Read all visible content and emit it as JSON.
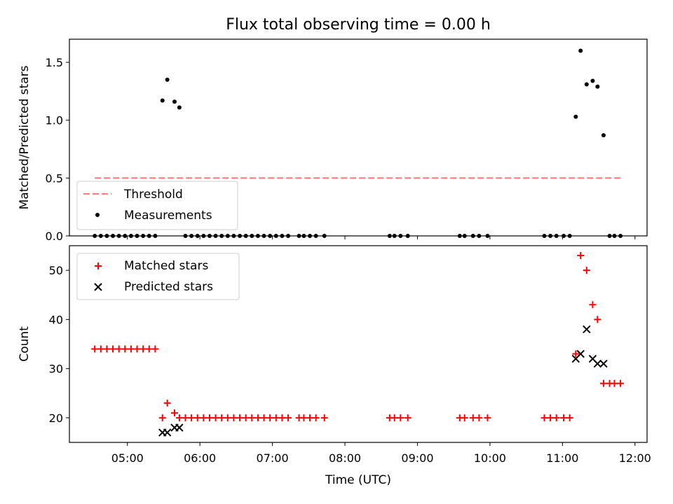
{
  "chart_data": {
    "title": "Flux total observing time = 0.00 h",
    "x_ticks": [
      "05:00",
      "06:00",
      "07:00",
      "08:00",
      "09:00",
      "10:00",
      "11:00",
      "12:00"
    ],
    "x_label": "Time (UTC)",
    "xlim": [
      "04:12",
      "12:10"
    ],
    "panels": [
      {
        "type": "scatter",
        "ylabel": "Matched/Predicted stars",
        "ylim": [
          0,
          1.7
        ],
        "y_ticks": [
          "0.0",
          "0.5",
          "1.0",
          "1.5"
        ],
        "legend_position": "lower-left",
        "threshold": {
          "name": "Threshold",
          "value": 0.5,
          "x_range": [
            "04:33",
            "11:48"
          ],
          "color": "#ff7f7f"
        },
        "measurements": {
          "name": "Measurements",
          "color": "#000000",
          "points": [
            [
              "04:33",
              0
            ],
            [
              "04:38",
              0
            ],
            [
              "04:43",
              0
            ],
            [
              "04:48",
              0
            ],
            [
              "04:53",
              0
            ],
            [
              "04:58",
              0
            ],
            [
              "05:03",
              0
            ],
            [
              "05:08",
              0
            ],
            [
              "05:13",
              0
            ],
            [
              "05:18",
              0
            ],
            [
              "05:23",
              0
            ],
            [
              "05:29",
              1.17
            ],
            [
              "05:33",
              1.35
            ],
            [
              "05:39",
              1.16
            ],
            [
              "05:43",
              1.11
            ],
            [
              "05:48",
              0
            ],
            [
              "05:53",
              0
            ],
            [
              "05:58",
              0
            ],
            [
              "06:03",
              0
            ],
            [
              "06:08",
              0
            ],
            [
              "06:13",
              0
            ],
            [
              "06:18",
              0
            ],
            [
              "06:23",
              0
            ],
            [
              "06:28",
              0
            ],
            [
              "06:33",
              0
            ],
            [
              "06:38",
              0
            ],
            [
              "06:43",
              0
            ],
            [
              "06:48",
              0
            ],
            [
              "06:53",
              0
            ],
            [
              "06:58",
              0
            ],
            [
              "07:03",
              0
            ],
            [
              "07:08",
              0
            ],
            [
              "07:13",
              0
            ],
            [
              "07:22",
              0
            ],
            [
              "07:26",
              0
            ],
            [
              "07:31",
              0
            ],
            [
              "07:36",
              0
            ],
            [
              "07:43",
              0
            ],
            [
              "08:37",
              0
            ],
            [
              "08:41",
              0
            ],
            [
              "08:46",
              0
            ],
            [
              "08:52",
              0
            ],
            [
              "09:35",
              0
            ],
            [
              "09:39",
              0
            ],
            [
              "09:46",
              0
            ],
            [
              "09:51",
              0
            ],
            [
              "09:58",
              0
            ],
            [
              "10:45",
              0
            ],
            [
              "10:50",
              0
            ],
            [
              "10:55",
              0
            ],
            [
              "11:01",
              0
            ],
            [
              "11:06",
              0
            ],
            [
              "11:11",
              1.03
            ],
            [
              "11:15",
              1.6
            ],
            [
              "11:20",
              1.31
            ],
            [
              "11:25",
              1.34
            ],
            [
              "11:29",
              1.29
            ],
            [
              "11:34",
              0.87
            ],
            [
              "11:39",
              0
            ],
            [
              "11:43",
              0
            ],
            [
              "11:48",
              0
            ]
          ]
        }
      },
      {
        "type": "scatter",
        "ylabel": "Count",
        "ylim": [
          15,
          55
        ],
        "y_ticks": [
          "20",
          "30",
          "40",
          "50"
        ],
        "legend_position": "upper-left",
        "series": [
          {
            "name": "Matched stars",
            "marker": "plus",
            "color": "#ff0000",
            "points": [
              [
                "04:33",
                34
              ],
              [
                "04:38",
                34
              ],
              [
                "04:43",
                34
              ],
              [
                "04:48",
                34
              ],
              [
                "04:53",
                34
              ],
              [
                "04:58",
                34
              ],
              [
                "05:03",
                34
              ],
              [
                "05:08",
                34
              ],
              [
                "05:13",
                34
              ],
              [
                "05:18",
                34
              ],
              [
                "05:23",
                34
              ],
              [
                "05:29",
                20
              ],
              [
                "05:33",
                23
              ],
              [
                "05:39",
                21
              ],
              [
                "05:43",
                20
              ],
              [
                "05:48",
                20
              ],
              [
                "05:53",
                20
              ],
              [
                "05:58",
                20
              ],
              [
                "06:03",
                20
              ],
              [
                "06:08",
                20
              ],
              [
                "06:13",
                20
              ],
              [
                "06:18",
                20
              ],
              [
                "06:23",
                20
              ],
              [
                "06:28",
                20
              ],
              [
                "06:33",
                20
              ],
              [
                "06:38",
                20
              ],
              [
                "06:43",
                20
              ],
              [
                "06:48",
                20
              ],
              [
                "06:53",
                20
              ],
              [
                "06:58",
                20
              ],
              [
                "07:03",
                20
              ],
              [
                "07:08",
                20
              ],
              [
                "07:13",
                20
              ],
              [
                "07:22",
                20
              ],
              [
                "07:26",
                20
              ],
              [
                "07:31",
                20
              ],
              [
                "07:36",
                20
              ],
              [
                "07:43",
                20
              ],
              [
                "08:37",
                20
              ],
              [
                "08:41",
                20
              ],
              [
                "08:46",
                20
              ],
              [
                "08:52",
                20
              ],
              [
                "09:35",
                20
              ],
              [
                "09:39",
                20
              ],
              [
                "09:46",
                20
              ],
              [
                "09:51",
                20
              ],
              [
                "09:58",
                20
              ],
              [
                "10:45",
                20
              ],
              [
                "10:50",
                20
              ],
              [
                "10:55",
                20
              ],
              [
                "11:01",
                20
              ],
              [
                "11:06",
                20
              ],
              [
                "11:11",
                33
              ],
              [
                "11:15",
                53
              ],
              [
                "11:20",
                50
              ],
              [
                "11:25",
                43
              ],
              [
                "11:29",
                40
              ],
              [
                "11:34",
                27
              ],
              [
                "11:39",
                27
              ],
              [
                "11:43",
                27
              ],
              [
                "11:48",
                27
              ]
            ]
          },
          {
            "name": "Predicted stars",
            "marker": "x",
            "color": "#000000",
            "points": [
              [
                "05:29",
                17
              ],
              [
                "05:33",
                17
              ],
              [
                "05:39",
                18
              ],
              [
                "05:43",
                18
              ],
              [
                "11:11",
                32
              ],
              [
                "11:15",
                33
              ],
              [
                "11:20",
                38
              ],
              [
                "11:25",
                32
              ],
              [
                "11:29",
                31
              ],
              [
                "11:34",
                31
              ]
            ]
          }
        ]
      }
    ]
  }
}
